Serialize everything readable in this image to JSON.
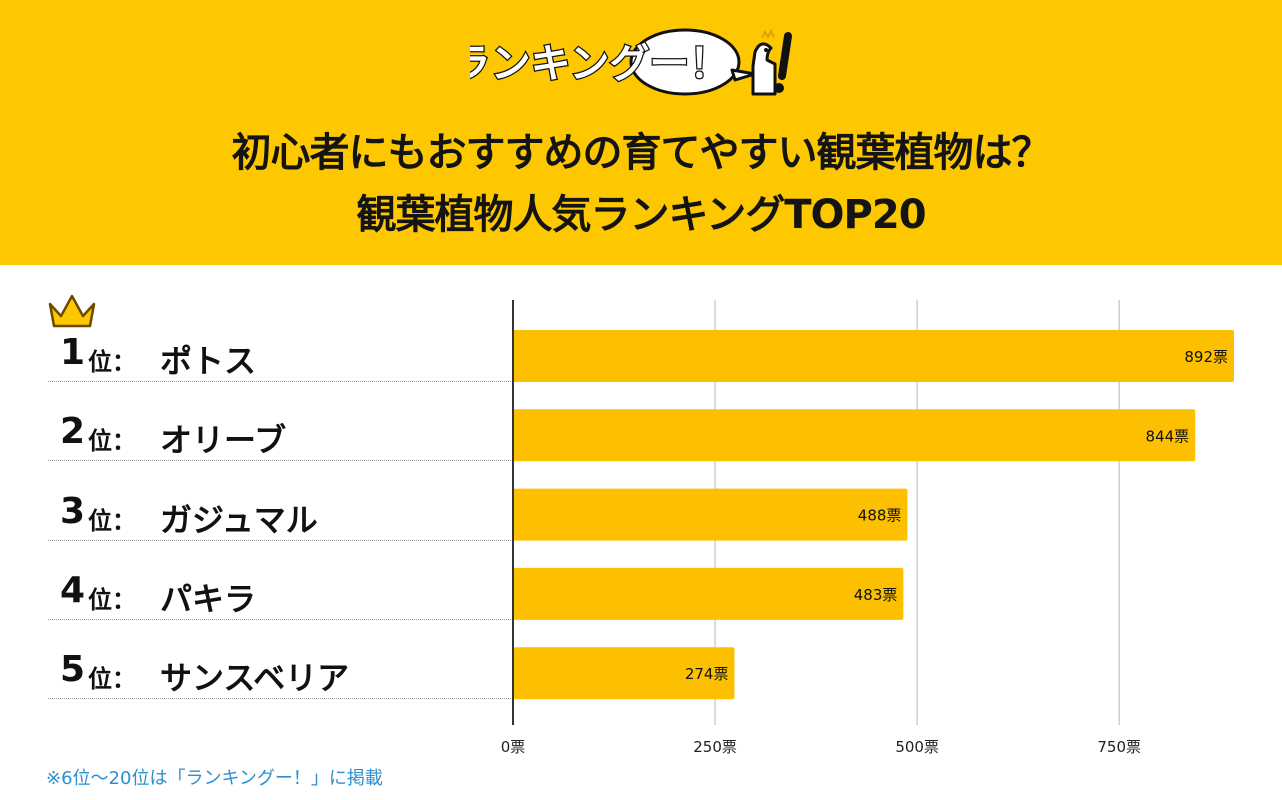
{
  "logo": {
    "text": "ランキングー！",
    "alt": "ランキングー!"
  },
  "header": {
    "title_line1": "初心者にもおすすめの育てやすい観葉植物は？",
    "title_line2": "観葉植物人気ランキングTOP20"
  },
  "ranks": [
    {
      "num": "1",
      "suffix": "位：",
      "name": "ポトス"
    },
    {
      "num": "2",
      "suffix": "位：",
      "name": "オリーブ"
    },
    {
      "num": "3",
      "suffix": "位：",
      "name": "ガジュマル"
    },
    {
      "num": "4",
      "suffix": "位：",
      "name": "パキラ"
    },
    {
      "num": "5",
      "suffix": "位：",
      "name": "サンスベリア"
    }
  ],
  "chart_data": {
    "type": "bar",
    "orientation": "horizontal",
    "categories": [
      "ポトス",
      "オリーブ",
      "ガジュマル",
      "パキラ",
      "サンスベリア"
    ],
    "values": [
      892,
      844,
      488,
      483,
      274
    ],
    "value_labels": [
      "892票",
      "844票",
      "488票",
      "483票",
      "274票"
    ],
    "xlim": [
      0,
      892
    ],
    "ticks": [
      0,
      250,
      500,
      750
    ],
    "tick_labels": [
      "0票",
      "250票",
      "500票",
      "750票"
    ],
    "grid": true,
    "bar_color": "#fdc000"
  },
  "footnote": "※6位〜20位は「ランキングー！」に掲載",
  "colors": {
    "header_bg": "#fdc800",
    "bar": "#fdc000",
    "footnote": "#2c8fd0"
  }
}
